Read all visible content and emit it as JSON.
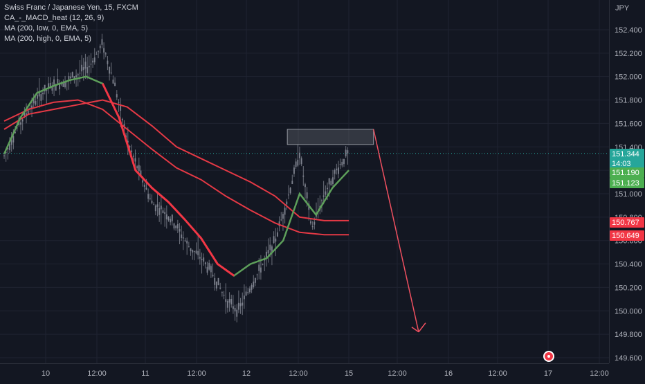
{
  "legend": {
    "symbol": "Swiss Franc / Japanese Yen, 15, FXCM",
    "indicator1": "CA_-_MACD_heat (12, 26, 9)",
    "indicator2": "MA (200, low, 0, EMA, 5)",
    "indicator3": "MA (200, high, 0, EMA, 5)"
  },
  "currency": "JPY",
  "price_tags": [
    {
      "value": "151.344",
      "sub": "14:03",
      "color": "#26a69a"
    },
    {
      "value": "151.190",
      "sub": "",
      "color": "#4caf50"
    },
    {
      "value": "151.123",
      "sub": "",
      "color": "#4caf50"
    },
    {
      "value": "150.767",
      "sub": "",
      "color": "#f23645"
    },
    {
      "value": "150.649",
      "sub": "",
      "color": "#f23645"
    }
  ],
  "colors": {
    "background": "#131722",
    "grid": "#1f2331",
    "candle": "#8a8e99",
    "ma_fast": "#f23645",
    "ma_slow": "#5d9f5a",
    "ema_lines": "#e53945",
    "arrow": "#f05060",
    "box": "#9598a1"
  },
  "chart_data": {
    "type": "line",
    "title": "Swiss Franc / Japanese Yen, 15, FXCM",
    "ylim": [
      149.6,
      152.5
    ],
    "y_ticks": [
      "149.600",
      "149.800",
      "150.000",
      "150.200",
      "150.400",
      "150.600",
      "150.800",
      "151.000",
      "151.200",
      "151.400",
      "151.600",
      "151.800",
      "152.000",
      "152.200",
      "152.400"
    ],
    "x_ticks": [
      "10",
      "12:00",
      "11",
      "12:00",
      "12",
      "12:00",
      "15",
      "12:00",
      "16",
      "12:00",
      "17",
      "12:00"
    ],
    "series": [
      {
        "x": [
          0,
          3,
          6,
          9,
          12,
          15,
          18,
          21,
          24,
          27,
          30,
          33,
          36,
          39,
          42,
          45,
          48,
          51,
          54,
          57,
          60,
          63,
          66,
          69,
          72,
          75,
          78,
          81,
          84
        ],
        "values": [
          151.32,
          151.55,
          151.72,
          151.85,
          151.93,
          151.96,
          152.02,
          152.1,
          152.28,
          151.92,
          151.45,
          151.18,
          150.92,
          150.85,
          150.72,
          150.55,
          150.45,
          150.3,
          150.1,
          150.0,
          150.2,
          150.4,
          150.6,
          150.95,
          151.35,
          150.7,
          151.0,
          151.2,
          151.36
        ]
      },
      {
        "x": [
          0,
          4,
          8,
          12,
          16,
          20,
          24,
          28,
          32,
          36,
          40,
          44,
          48,
          52,
          56,
          60,
          64,
          68,
          72,
          76,
          80,
          84
        ],
        "values": [
          151.34,
          151.65,
          151.86,
          151.92,
          151.97,
          152.0,
          151.94,
          151.65,
          151.2,
          151.05,
          150.93,
          150.78,
          150.62,
          150.4,
          150.3,
          150.4,
          150.45,
          150.6,
          151.0,
          150.82,
          151.05,
          151.2
        ]
      },
      {
        "x": [
          0,
          6,
          12,
          18,
          24,
          30,
          36,
          42,
          48,
          54,
          60,
          66,
          72,
          78,
          84
        ],
        "values": [
          151.55,
          151.68,
          151.72,
          151.76,
          151.8,
          151.74,
          151.58,
          151.4,
          151.3,
          151.2,
          151.1,
          150.98,
          150.8,
          150.77,
          150.77
        ]
      },
      {
        "x": [
          0,
          6,
          12,
          18,
          24,
          30,
          36,
          42,
          48,
          54,
          60,
          66,
          72,
          78,
          84
        ],
        "values": [
          151.62,
          151.72,
          151.78,
          151.8,
          151.72,
          151.55,
          151.38,
          151.22,
          151.12,
          150.98,
          150.86,
          150.75,
          150.67,
          150.65,
          150.65
        ]
      }
    ],
    "annotations": {
      "resistance_box": {
        "x_start": 69,
        "x_end": 90,
        "y_low": 151.42,
        "y_high": 151.55
      },
      "projection_arrow": {
        "x_start": 90,
        "y_start": 151.55,
        "x_end": 101,
        "y_end": 149.82
      }
    }
  }
}
